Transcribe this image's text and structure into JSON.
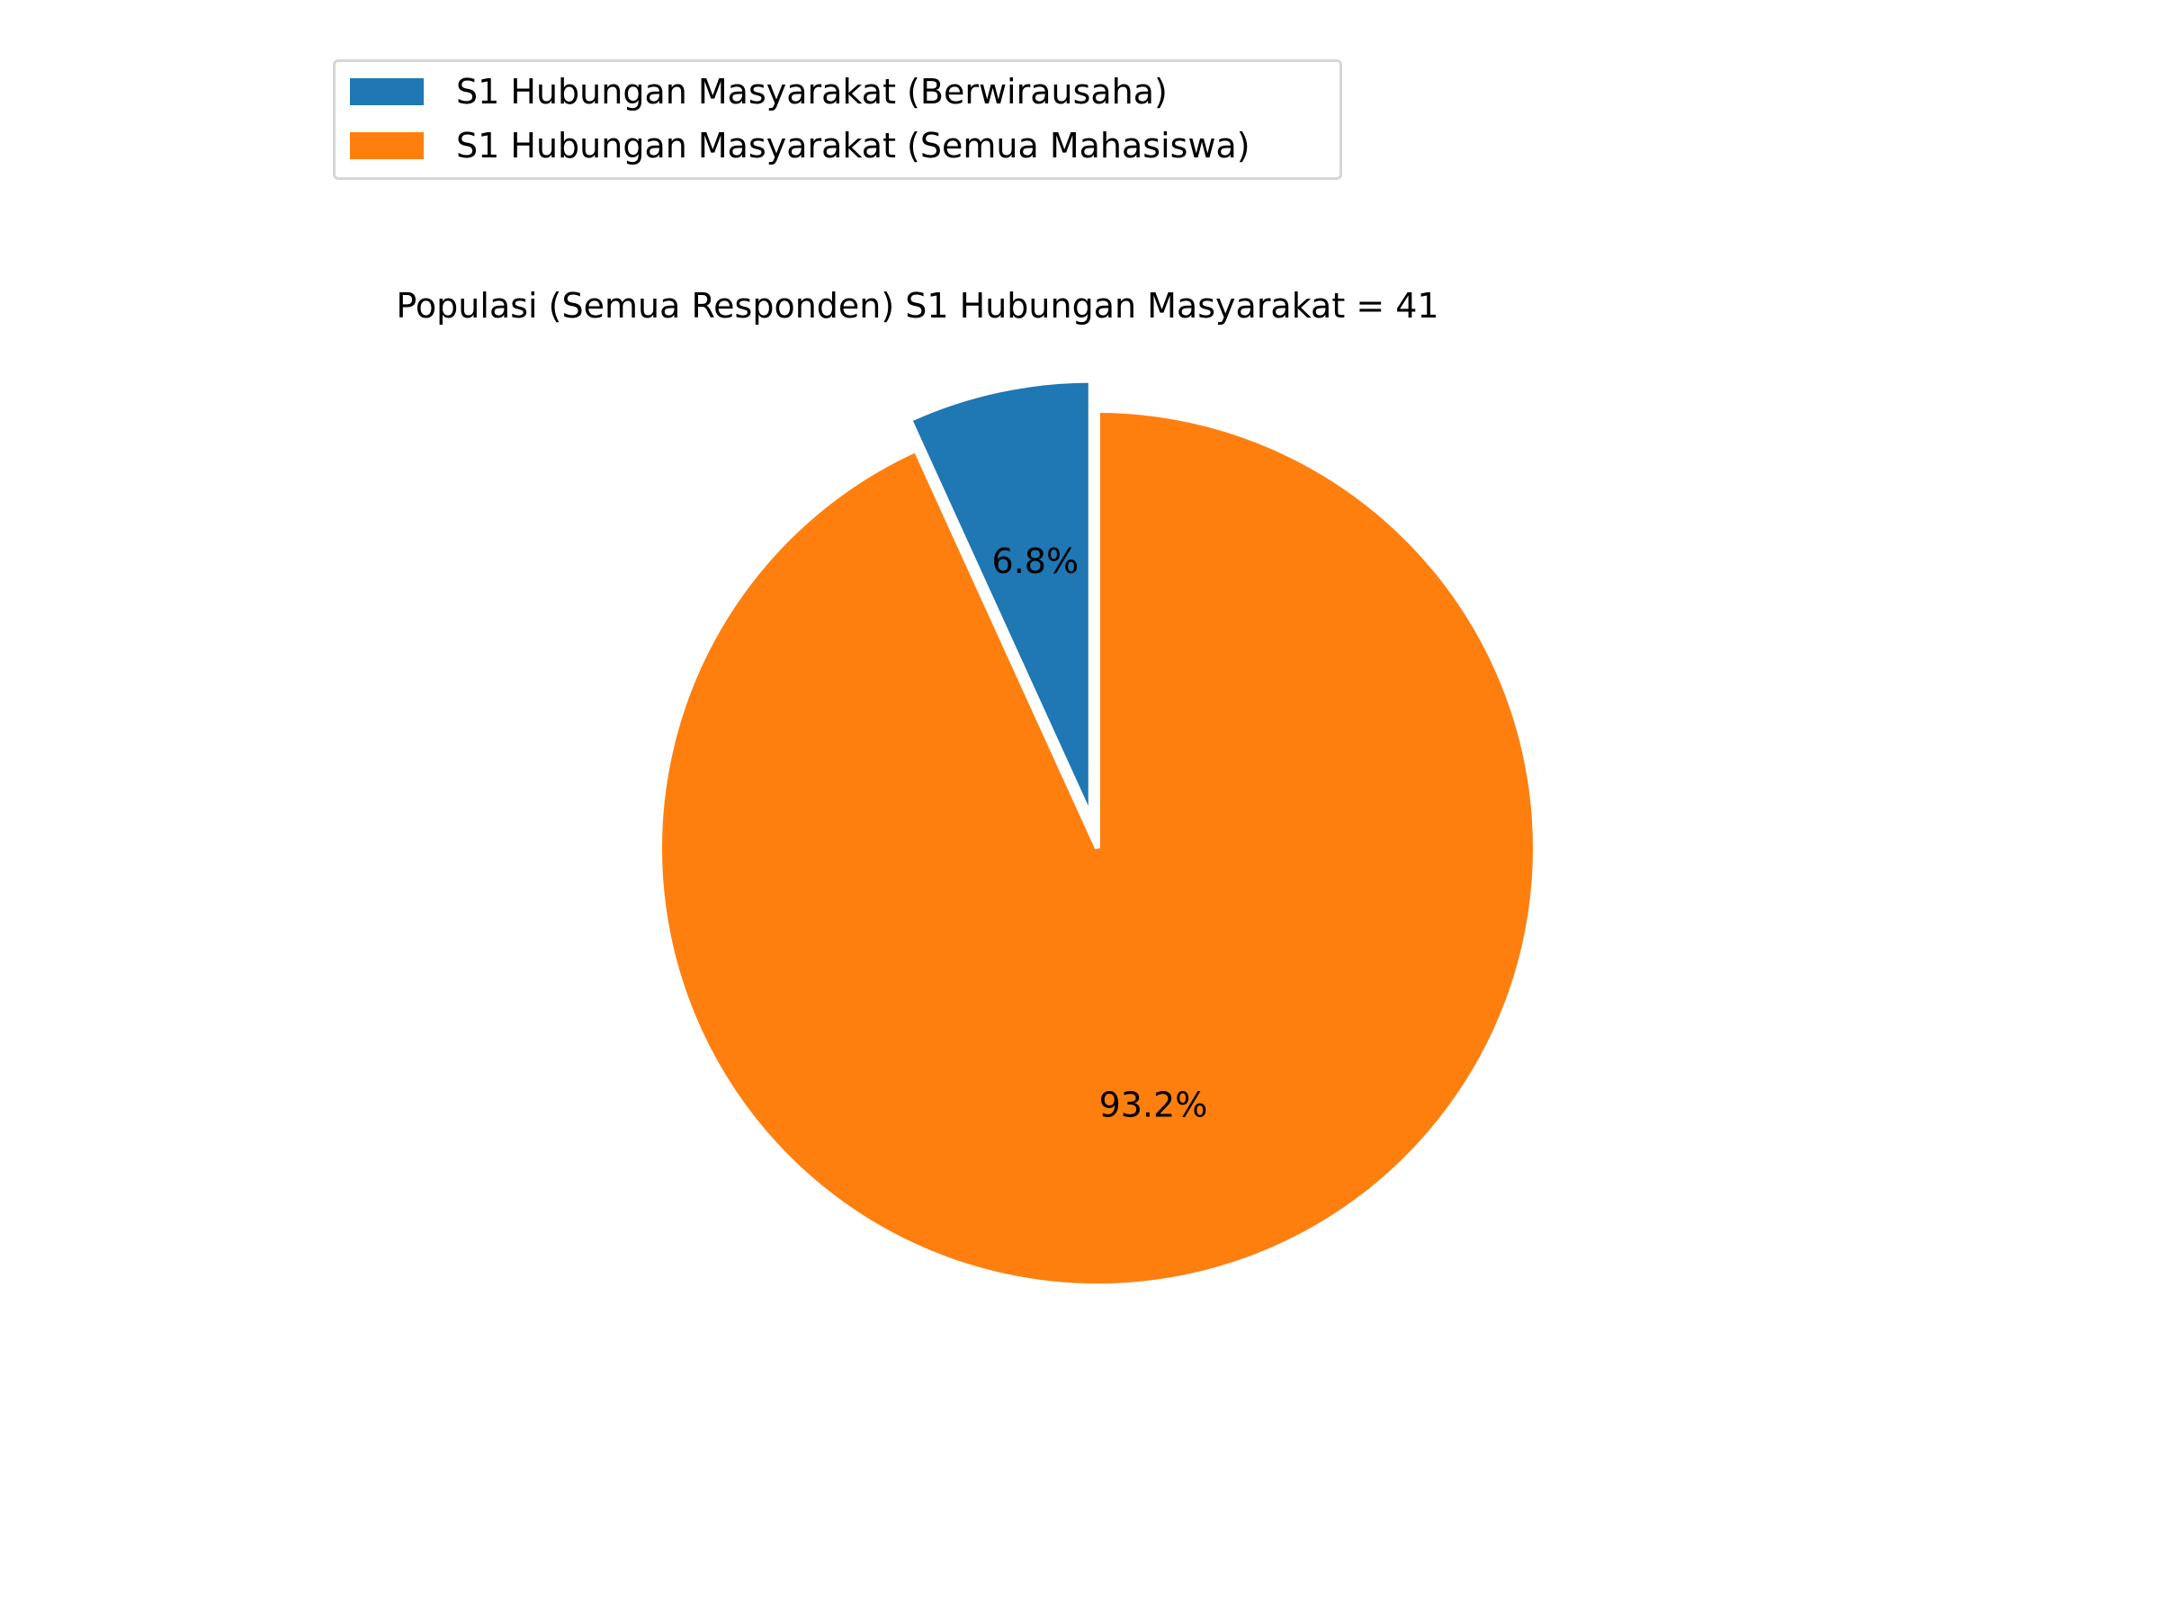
{
  "chart_data": {
    "type": "pie",
    "title": "Populasi (Semua Responden) S1 Hubungan Masyarakat = 41",
    "slices": [
      {
        "label": "S1 Hubungan Masyarakat (Berwirausaha)",
        "value": 6.8,
        "value_label": "6.8%",
        "color": "#1f77b4",
        "exploded": true
      },
      {
        "label": "S1 Hubungan Masyarakat (Semua Mahasiswa)",
        "value": 93.2,
        "value_label": "93.2%",
        "color": "#ff7f0e",
        "exploded": false
      }
    ],
    "start_angle": "top",
    "direction": "counterclockwise",
    "legend_position": "top-left"
  }
}
